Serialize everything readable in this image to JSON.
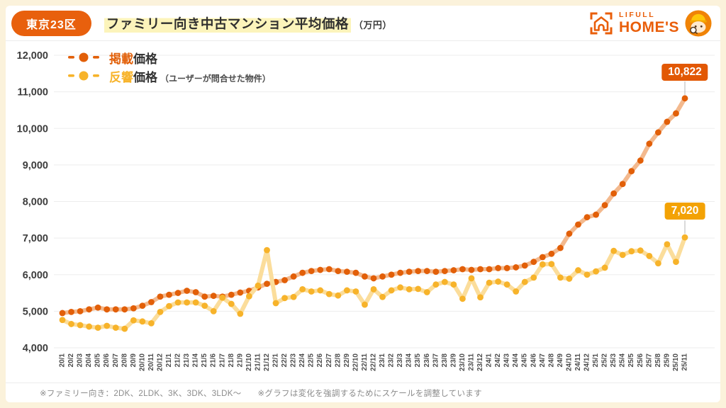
{
  "header": {
    "badge": "東京23区",
    "title": "ファミリー向き中古マンション平均価格",
    "unit": "（万円）",
    "logo": {
      "brand_top": "LIFULL",
      "brand_name": "HOME'S"
    }
  },
  "legend": {
    "items": [
      {
        "em": "掲載",
        "rest": "価格",
        "note": "",
        "color": "#e25f08",
        "line_color": "#f3b98e"
      },
      {
        "em": "反響",
        "rest": "価格",
        "note": "（ユーザーが問合せた物件）",
        "color": "#f7b32a",
        "line_color": "#fbdd9b"
      }
    ]
  },
  "annotations": [
    {
      "text": "10,822",
      "color": "#e25804"
    },
    {
      "text": "7,020",
      "color": "#f3a205"
    }
  ],
  "footer": {
    "note1": "※ファミリー向き：2DK、2LDK、3K、3DK、3LDK〜",
    "note2": "※グラフは変化を強調するためにスケールを調整しています"
  },
  "chart_data": {
    "type": "line",
    "title": "ファミリー向き中古マンション平均価格（万円）",
    "region": "東京23区",
    "xlabel": "",
    "ylabel": "",
    "unit": "万円",
    "ylim": [
      4000,
      12000
    ],
    "ytick_step": 1000,
    "grid": true,
    "legend_position": "top-left",
    "x": [
      "20/1",
      "20/2",
      "20/3",
      "20/4",
      "20/5",
      "20/6",
      "20/7",
      "20/8",
      "20/9",
      "20/10",
      "20/11",
      "20/12",
      "21/1",
      "21/2",
      "21/3",
      "21/4",
      "21/5",
      "21/6",
      "21/7",
      "21/8",
      "21/9",
      "21/10",
      "21/11",
      "21/12",
      "22/1",
      "22/2",
      "22/3",
      "22/4",
      "22/5",
      "22/6",
      "22/7",
      "22/8",
      "22/9",
      "22/10",
      "22/11",
      "22/12",
      "23/1",
      "23/2",
      "23/3",
      "23/4",
      "23/5",
      "23/6",
      "23/7",
      "23/8",
      "23/9",
      "23/10",
      "23/11",
      "23/12",
      "24/1",
      "24/2",
      "24/3",
      "24/4",
      "24/5",
      "24/6",
      "24/7",
      "24/8",
      "24/9",
      "24/10",
      "24/11",
      "24/12",
      "25/1",
      "25/2",
      "25/3",
      "25/4",
      "25/5",
      "25/6",
      "25/7",
      "25/8",
      "25/9",
      "25/10",
      "25/11"
    ],
    "series": [
      {
        "name": "掲載価格",
        "color": "#e25f08",
        "line_color": "#f3b98e",
        "values": [
          4950,
          4980,
          5000,
          5050,
          5100,
          5050,
          5050,
          5050,
          5080,
          5150,
          5250,
          5400,
          5450,
          5500,
          5560,
          5520,
          5400,
          5420,
          5400,
          5450,
          5510,
          5560,
          5650,
          5750,
          5800,
          5850,
          5950,
          6050,
          6100,
          6130,
          6150,
          6100,
          6080,
          6050,
          5950,
          5900,
          5950,
          6000,
          6050,
          6080,
          6100,
          6100,
          6080,
          6100,
          6120,
          6150,
          6130,
          6150,
          6150,
          6180,
          6180,
          6200,
          6250,
          6350,
          6480,
          6570,
          6730,
          7120,
          7370,
          7570,
          7640,
          7900,
          8220,
          8480,
          8830,
          9120,
          9580,
          9890,
          10180,
          10410,
          10822
        ]
      },
      {
        "name": "反響価格（ユーザーが問合せた物件）",
        "color": "#f7b32a",
        "line_color": "#fbdd9b",
        "values": [
          4760,
          4650,
          4620,
          4580,
          4550,
          4600,
          4550,
          4520,
          4750,
          4720,
          4670,
          4980,
          5140,
          5240,
          5240,
          5240,
          5150,
          5000,
          5370,
          5200,
          4930,
          5410,
          5700,
          6670,
          5220,
          5360,
          5390,
          5600,
          5540,
          5570,
          5470,
          5430,
          5570,
          5540,
          5180,
          5600,
          5390,
          5570,
          5650,
          5600,
          5610,
          5520,
          5730,
          5800,
          5730,
          5340,
          5900,
          5380,
          5780,
          5810,
          5730,
          5540,
          5800,
          5920,
          6280,
          6290,
          5920,
          5890,
          6120,
          6000,
          6090,
          6190,
          6650,
          6540,
          6640,
          6660,
          6510,
          6310,
          6830,
          6350,
          7020
        ]
      }
    ],
    "last_value_labels": [
      10822,
      7020
    ]
  }
}
